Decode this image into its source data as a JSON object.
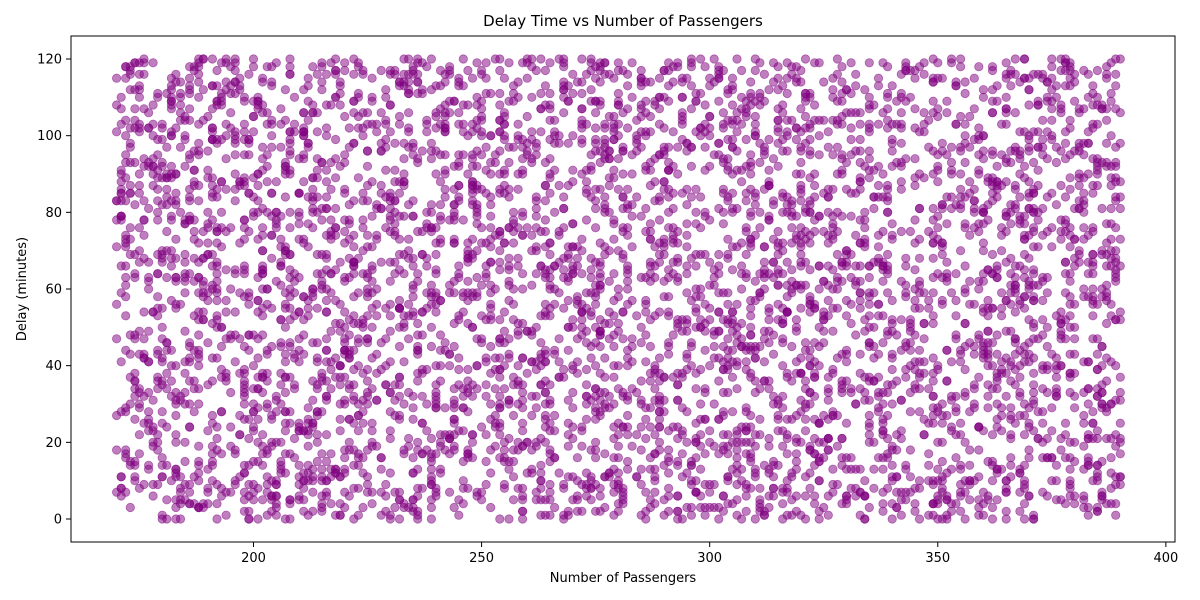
{
  "chart_data": {
    "type": "scatter",
    "title": "Delay Time vs Number of Passengers",
    "xlabel": "Number of Passengers",
    "ylabel": "Delay (minutes)",
    "xlim": [
      160,
      402
    ],
    "ylim": [
      -6,
      126
    ],
    "x_ticks": [
      200,
      250,
      300,
      350,
      400
    ],
    "y_ticks": [
      0,
      20,
      40,
      60,
      80,
      100,
      120
    ],
    "grid": false,
    "legend": "none",
    "marker_color": "#800080",
    "marker_alpha": 0.5,
    "series": [
      {
        "x_range": [
          170,
          390
        ],
        "y_range": [
          0,
          120
        ],
        "point_count": 5000,
        "distribution": "uniform-integer",
        "seed": 42
      }
    ]
  },
  "colors": {
    "background": "#ffffff",
    "axes": "#000000",
    "marker": "#800080"
  }
}
